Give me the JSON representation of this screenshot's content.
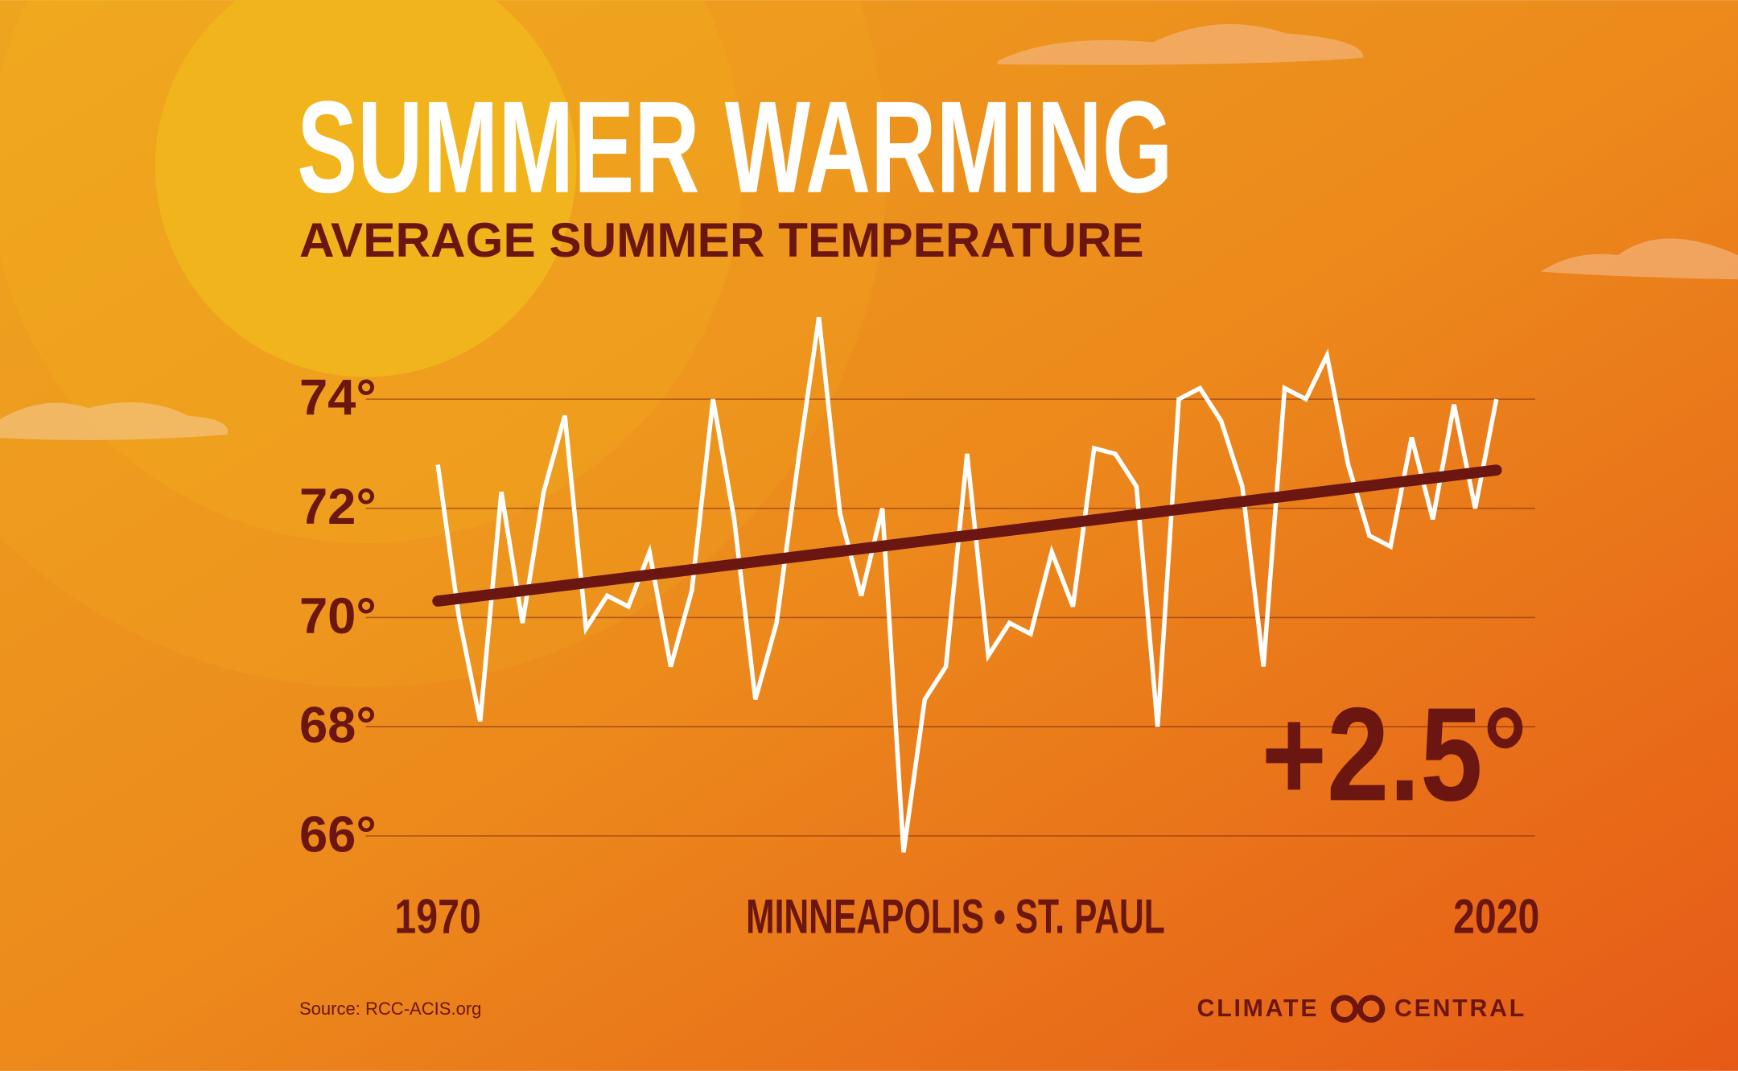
{
  "chart_data": {
    "type": "line",
    "title": "SUMMER WARMING",
    "subtitle": "AVERAGE SUMMER TEMPERATURE",
    "annotation": "+2.5°",
    "location": "MINNEAPOLIS • ST. PAUL",
    "source": "Source: RCC-ACIS.org",
    "brand": [
      "CLIMATE",
      "CENTRAL"
    ],
    "x": [
      1970,
      1971,
      1972,
      1973,
      1974,
      1975,
      1976,
      1977,
      1978,
      1979,
      1980,
      1981,
      1982,
      1983,
      1984,
      1985,
      1986,
      1987,
      1988,
      1989,
      1990,
      1991,
      1992,
      1993,
      1994,
      1995,
      1996,
      1997,
      1998,
      1999,
      2000,
      2001,
      2002,
      2003,
      2004,
      2005,
      2006,
      2007,
      2008,
      2009,
      2010,
      2011,
      2012,
      2013,
      2014,
      2015,
      2016,
      2017,
      2018,
      2019,
      2020
    ],
    "series": [
      {
        "color": "#ffffff",
        "values": [
          72.8,
          70.0,
          68.1,
          72.3,
          69.9,
          72.3,
          73.7,
          69.8,
          70.4,
          70.2,
          71.2,
          69.1,
          70.5,
          74.0,
          71.8,
          68.5,
          69.9,
          72.8,
          75.5,
          71.9,
          70.4,
          72.0,
          65.7,
          68.5,
          69.1,
          73.0,
          69.3,
          69.9,
          69.7,
          71.2,
          70.2,
          73.1,
          73.0,
          72.4,
          68.0,
          74.0,
          74.2,
          73.6,
          72.4,
          69.1,
          74.2,
          74.0,
          74.8,
          72.8,
          71.5,
          71.3,
          73.3,
          71.8,
          73.9,
          72.0,
          74.0
        ]
      }
    ],
    "trend": {
      "x": [
        1970,
        2020
      ],
      "values": [
        70.3,
        72.7
      ],
      "color": "#6b1610"
    },
    "xlim": [
      1970,
      2020
    ],
    "xticks": [
      1970,
      2020
    ],
    "ylim": [
      66,
      74
    ],
    "yticks": [
      {
        "value": 66,
        "label": "66°"
      },
      {
        "value": 68,
        "label": "68°"
      },
      {
        "value": 70,
        "label": "70°"
      },
      {
        "value": 72,
        "label": "72°"
      },
      {
        "value": 74,
        "label": "74°"
      }
    ],
    "grid": true,
    "text_color": "#6b1610"
  }
}
